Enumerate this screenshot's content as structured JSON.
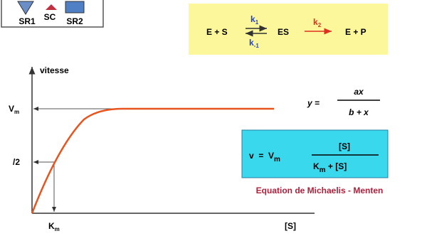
{
  "inset": {
    "sr1": "SR1",
    "sc": "SC",
    "sr2": "SR2"
  },
  "reaction": {
    "substrate": "E + S",
    "k1": "k",
    "k1_sub": "1",
    "km1": "k",
    "km1_sub": "-1",
    "complex": "ES",
    "k2": "k",
    "k2_sub": "2",
    "product": "E + P"
  },
  "graph": {
    "y_label": "vitesse",
    "vm": "V",
    "vm_sub": "m",
    "half": "/2",
    "km": "K",
    "km_sub": "m",
    "x_label": "[S]"
  },
  "general_equation": {
    "lhs": "y =",
    "numerator": "ax",
    "denominator": "b + x"
  },
  "mm_equation": {
    "lhs": "v  =  V",
    "lhs_sub": "m",
    "numerator": "[S]",
    "denominator_k": "K",
    "denominator_sub": "m",
    "denominator_rest": " + [S]",
    "caption": "Equation de Michaelis - Menten"
  }
}
